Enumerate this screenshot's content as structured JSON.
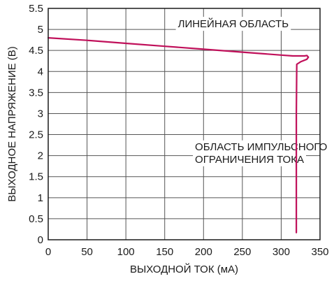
{
  "chart_data": {
    "type": "line",
    "title": "",
    "xlabel": "ВЫХОДНОЙ ТОК (мА)",
    "ylabel": "ВЫХОДНОЕ НАПРЯЖЕНИЕ (В)",
    "xlim": [
      0,
      350
    ],
    "ylim": [
      0,
      5.5
    ],
    "x_ticks": [
      "0",
      "50",
      "100",
      "150",
      "200",
      "250",
      "300",
      "350"
    ],
    "y_ticks": [
      "0",
      "0.5",
      "1",
      "1.5",
      "2",
      "2.5",
      "3",
      "3.5",
      "4",
      "4.5",
      "5",
      "5.5"
    ],
    "x_tick_values": [
      0,
      50,
      100,
      150,
      200,
      250,
      300,
      350
    ],
    "y_tick_values": [
      0,
      0.5,
      1,
      1.5,
      2,
      2.5,
      3,
      3.5,
      4,
      4.5,
      5,
      5.5
    ],
    "grid": true,
    "series": [
      {
        "color": "#c0105a",
        "x": [
          0,
          50,
          100,
          150,
          200,
          250,
          300,
          315,
          325,
          330,
          333,
          335,
          333,
          325,
          320,
          319.5,
          319.5
        ],
        "y": [
          4.8,
          4.74,
          4.67,
          4.6,
          4.53,
          4.46,
          4.39,
          4.37,
          4.37,
          4.37,
          4.38,
          4.34,
          4.29,
          4.23,
          4.17,
          3.0,
          0.17
        ]
      }
    ],
    "annotations": [
      {
        "text": "ЛИНЕЙНАЯ ОБЛАСТЬ",
        "x": 167,
        "y": 5.05
      },
      {
        "text": "ОБЛАСТЬ ИМПУЛЬСНОГО",
        "x": 189,
        "y": 2.13
      },
      {
        "text": "ОГРАНИЧЕНИЯ ТОКА",
        "x": 189,
        "y": 1.83
      }
    ]
  }
}
